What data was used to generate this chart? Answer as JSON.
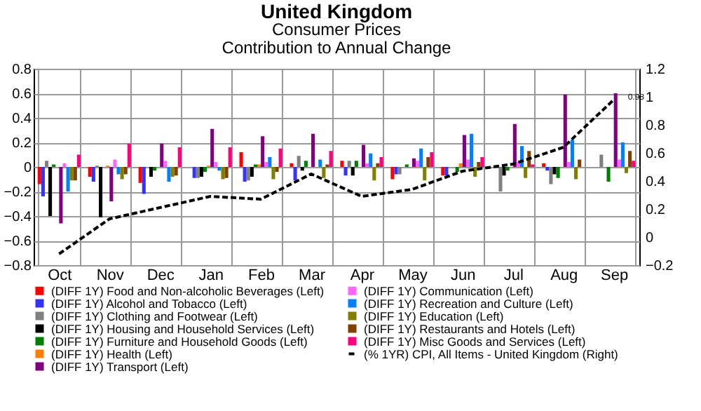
{
  "chart_data": {
    "type": "bar",
    "title": "United Kingdom",
    "subtitle": "Consumer Prices\nContribution to Annual Change",
    "categories": [
      "Oct",
      "Nov",
      "Dec",
      "Jan",
      "Feb",
      "Mar",
      "Apr",
      "May",
      "Jun",
      "Jul",
      "Aug",
      "Sep"
    ],
    "ylim": [
      -0.8,
      0.8
    ],
    "yticks": [
      -0.8,
      -0.6,
      -0.4,
      -0.2,
      0,
      0.2,
      0.4,
      0.6,
      0.8
    ],
    "y2lim": [
      -0.2,
      1.2
    ],
    "y2ticks": [
      -0.2,
      0,
      0.2,
      0.4,
      0.6,
      0.8,
      1,
      1.2
    ],
    "grid": true,
    "legend": "bottom",
    "annotations": [
      "0.98"
    ],
    "series": [
      {
        "name": "(DIFF 1Y) Food and Non-alcoholic Beverages  (Left)",
        "color": "#ff0000",
        "values": [
          -0.14,
          -0.08,
          -0.13,
          0.0,
          0.12,
          0.03,
          0.05,
          -0.1,
          -0.07,
          0.0,
          0.03,
          0.0
        ]
      },
      {
        "name": "(DIFF 1Y) Alcohol and Tobacco  (Left)",
        "color": "#3333ff",
        "values": [
          -0.24,
          -0.12,
          -0.22,
          -0.09,
          -0.12,
          -0.11,
          -0.07,
          -0.06,
          -0.07,
          0.0,
          -0.03,
          0.0
        ]
      },
      {
        "name": "(DIFF 1Y) Clothing and Footwear  (Left)",
        "color": "#808080",
        "values": [
          0.05,
          0.01,
          0.0,
          -0.09,
          -0.11,
          0.09,
          0.05,
          -0.06,
          0.0,
          -0.2,
          -0.14,
          0.1
        ]
      },
      {
        "name": "(DIFF 1Y) Housing and Household Services  (Left)",
        "color": "#000000",
        "values": [
          -0.4,
          -0.41,
          -0.08,
          -0.08,
          -0.08,
          -0.03,
          -0.07,
          0.0,
          0.0,
          -0.07,
          -0.06,
          0.0
        ]
      },
      {
        "name": "(DIFF 1Y) Furniture and Household Goods  (Left)",
        "color": "#008000",
        "values": [
          0.02,
          0.0,
          -0.03,
          -0.04,
          0.02,
          0.05,
          0.05,
          0.02,
          -0.04,
          -0.03,
          -0.09,
          -0.12
        ]
      },
      {
        "name": "(DIFF 1Y) Health  (Left)",
        "color": "#ff8000",
        "values": [
          0.0,
          0.01,
          0.0,
          0.01,
          0.02,
          0.0,
          0.0,
          0.0,
          0.03,
          0.0,
          0.0,
          0.0
        ]
      },
      {
        "name": "(DIFF 1Y) Transport  (Left)",
        "color": "#800080",
        "values": [
          -0.46,
          -0.28,
          0.19,
          0.31,
          0.25,
          0.27,
          0.18,
          0.07,
          0.26,
          0.35,
          0.59,
          0.6
        ]
      },
      {
        "name": "(DIFF 1Y) Communication  (Left)",
        "color": "#ff66ff",
        "values": [
          0.03,
          0.06,
          0.05,
          0.04,
          0.04,
          0.0,
          0.03,
          0.05,
          0.06,
          0.04,
          0.04,
          0.06
        ]
      },
      {
        "name": "(DIFF 1Y) Recreation and Culture  (Left)",
        "color": "#0080ff",
        "values": [
          -0.2,
          -0.06,
          -0.12,
          -0.03,
          0.08,
          0.06,
          0.11,
          0.15,
          0.27,
          0.17,
          0.22,
          0.2
        ]
      },
      {
        "name": "(DIFF 1Y) Education  (Left)",
        "color": "#808000",
        "values": [
          -0.11,
          -0.1,
          -0.08,
          -0.1,
          -0.1,
          -0.09,
          -0.11,
          -0.11,
          -0.08,
          -0.09,
          -0.1,
          -0.05
        ]
      },
      {
        "name": "(DIFF 1Y) Restaurants and Hotels  (Left)",
        "color": "#804000",
        "values": [
          -0.11,
          -0.06,
          -0.07,
          -0.09,
          -0.04,
          0.02,
          0.03,
          0.08,
          0.04,
          0.13,
          0.06,
          0.13
        ]
      },
      {
        "name": "(DIFF 1Y) Misc Goods and Services  (Left)",
        "color": "#ff0080",
        "values": [
          0.1,
          0.19,
          0.16,
          0.16,
          0.15,
          0.13,
          0.08,
          0.12,
          0.08,
          0.02,
          0.0,
          0.05
        ]
      },
      {
        "name": "(% 1YR) CPI, All Items - United Kingdom (Right)",
        "type": "line",
        "axis": "y2",
        "line_style": "dashed",
        "color": "#000000",
        "values": [
          -0.12,
          0.13,
          0.21,
          0.29,
          0.27,
          0.45,
          0.29,
          0.34,
          0.47,
          0.52,
          0.64,
          0.98
        ]
      }
    ]
  }
}
